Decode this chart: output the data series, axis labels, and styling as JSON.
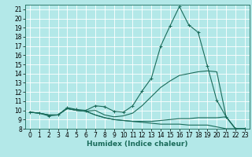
{
  "title": "",
  "xlabel": "Humidex (Indice chaleur)",
  "xlim": [
    -0.5,
    23.5
  ],
  "ylim": [
    8,
    21.5
  ],
  "yticks": [
    8,
    9,
    10,
    11,
    12,
    13,
    14,
    15,
    16,
    17,
    18,
    19,
    20,
    21
  ],
  "xticks": [
    0,
    1,
    2,
    3,
    4,
    5,
    6,
    7,
    8,
    9,
    10,
    11,
    12,
    13,
    14,
    15,
    16,
    17,
    18,
    19,
    20,
    21,
    22,
    23
  ],
  "bg_color": "#b3e8e8",
  "line_color": "#1a6b5a",
  "grid_color": "#ffffff",
  "series": [
    {
      "x": [
        0,
        1,
        2,
        3,
        4,
        5,
        6,
        7,
        8,
        9,
        10,
        11,
        12,
        13,
        14,
        15,
        16,
        17,
        18,
        19,
        20,
        21,
        22,
        23
      ],
      "y": [
        9.8,
        9.7,
        9.4,
        9.5,
        10.3,
        10.1,
        10.0,
        10.5,
        10.4,
        9.9,
        9.8,
        10.5,
        12.1,
        13.5,
        17.0,
        19.2,
        21.3,
        19.3,
        18.5,
        14.8,
        11.1,
        9.3,
        8.0,
        8.0
      ],
      "marker": true
    },
    {
      "x": [
        0,
        1,
        2,
        3,
        4,
        5,
        6,
        7,
        8,
        9,
        10,
        11,
        12,
        13,
        14,
        15,
        16,
        17,
        18,
        19,
        20,
        21,
        22,
        23
      ],
      "y": [
        9.8,
        9.7,
        9.5,
        9.5,
        10.2,
        10.0,
        9.9,
        10.0,
        9.5,
        9.3,
        9.4,
        9.7,
        10.5,
        11.5,
        12.5,
        13.2,
        13.8,
        14.0,
        14.2,
        14.3,
        14.2,
        9.3,
        8.0,
        8.0
      ],
      "marker": false
    },
    {
      "x": [
        0,
        1,
        2,
        3,
        4,
        5,
        6,
        7,
        8,
        9,
        10,
        11,
        12,
        13,
        14,
        15,
        16,
        17,
        18,
        19,
        20,
        21,
        22,
        23
      ],
      "y": [
        9.8,
        9.7,
        9.5,
        9.5,
        10.2,
        10.0,
        9.9,
        9.5,
        9.2,
        9.0,
        8.9,
        8.8,
        8.8,
        8.8,
        8.9,
        9.0,
        9.1,
        9.1,
        9.2,
        9.2,
        9.2,
        9.3,
        8.0,
        8.0
      ],
      "marker": false
    },
    {
      "x": [
        0,
        1,
        2,
        3,
        4,
        5,
        6,
        7,
        8,
        9,
        10,
        11,
        12,
        13,
        14,
        15,
        16,
        17,
        18,
        19,
        20,
        21,
        22,
        23
      ],
      "y": [
        9.8,
        9.7,
        9.5,
        9.5,
        10.2,
        10.0,
        9.9,
        9.5,
        9.2,
        9.0,
        8.9,
        8.8,
        8.7,
        8.6,
        8.5,
        8.5,
        8.5,
        8.4,
        8.4,
        8.4,
        8.2,
        8.0,
        8.0,
        8.0
      ],
      "marker": false
    }
  ],
  "tick_fontsize": 5.5,
  "xlabel_fontsize": 6.5,
  "linewidth": 0.8,
  "marker_size": 3.0
}
